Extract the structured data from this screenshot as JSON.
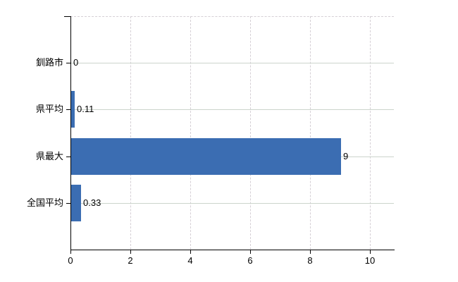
{
  "chart_data": {
    "type": "bar",
    "orientation": "horizontal",
    "title": "",
    "xlabel": "",
    "ylabel": "",
    "categories": [
      "釧路市",
      "県平均",
      "県最大",
      "全国平均"
    ],
    "values": [
      0,
      0.11,
      9,
      0.33
    ],
    "value_labels": [
      "0",
      "0.11",
      "9",
      "0.33"
    ],
    "series": [
      {
        "name": "value",
        "values": [
          0,
          0.11,
          9,
          0.33
        ]
      }
    ],
    "xlim": [
      0,
      10.8
    ],
    "xticks": [
      0,
      2,
      4,
      6,
      8,
      10
    ],
    "xtick_labels": [
      "0",
      "2",
      "4",
      "6",
      "8",
      "10"
    ],
    "grid": {
      "vertical": "dashed",
      "horizontal": "solid",
      "top_border": "dashed"
    },
    "legend": "none"
  },
  "colors": {
    "bar": "#3b6db2",
    "axis": "#000000",
    "grid_horizontal": "#ccd4cc",
    "grid_vertical": "#d5cfd5",
    "top_border": "#d5cfd5",
    "text": "#000000",
    "background": "#ffffff"
  }
}
